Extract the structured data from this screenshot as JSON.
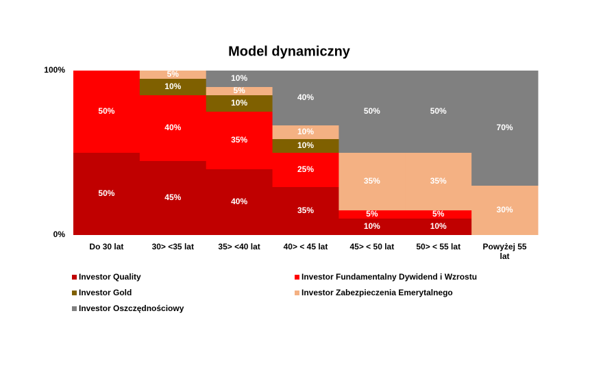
{
  "chart_data": {
    "type": "bar",
    "stacked_percent": true,
    "title": "Model dynamiczny",
    "categories": [
      "Do 30 lat",
      "30> <35 lat",
      "35>  <40 lat",
      "40>  < 45 lat",
      "45>  < 50 lat",
      "50>  < 55 lat",
      "Powyżej 55 lat"
    ],
    "series": [
      {
        "name": "Investor Quality",
        "color": "#c00000",
        "values": [
          50,
          45,
          40,
          35,
          10,
          10,
          0
        ],
        "value_labels": [
          "50%",
          "45%",
          "40%",
          "35%",
          "10%",
          "10%",
          null
        ]
      },
      {
        "name": "Investor Fundamentalny Dywidend i Wzrostu",
        "color": "#ff0000",
        "values": [
          50,
          40,
          35,
          25,
          5,
          5,
          0
        ],
        "value_labels": [
          "50%",
          "40%",
          "35%",
          "25%",
          "5%",
          "5%",
          null
        ]
      },
      {
        "name": "Investor Gold",
        "color": "#7f6000",
        "values": [
          0,
          10,
          10,
          10,
          0,
          0,
          0
        ],
        "value_labels": [
          null,
          "10%",
          "10%",
          "10%",
          null,
          null,
          null
        ]
      },
      {
        "name": "Investor Zabezpieczenia Emerytalnego",
        "color": "#f4b183",
        "values": [
          0,
          5,
          5,
          10,
          35,
          35,
          30
        ],
        "value_labels": [
          null,
          "5%",
          "5%",
          "10%",
          "35%",
          "35%",
          "30%"
        ]
      },
      {
        "name": "Investor Oszczędnościowy",
        "color": "#808080",
        "values": [
          0,
          0,
          10,
          40,
          50,
          50,
          70
        ],
        "value_labels": [
          null,
          null,
          "10%",
          "40%",
          "50%",
          "50%",
          "70%"
        ]
      }
    ],
    "ylim": [
      0,
      100
    ],
    "yticks": [
      {
        "value": 0,
        "label": "0%"
      },
      {
        "value": 100,
        "label": "100%"
      }
    ],
    "legend": "bottom"
  }
}
